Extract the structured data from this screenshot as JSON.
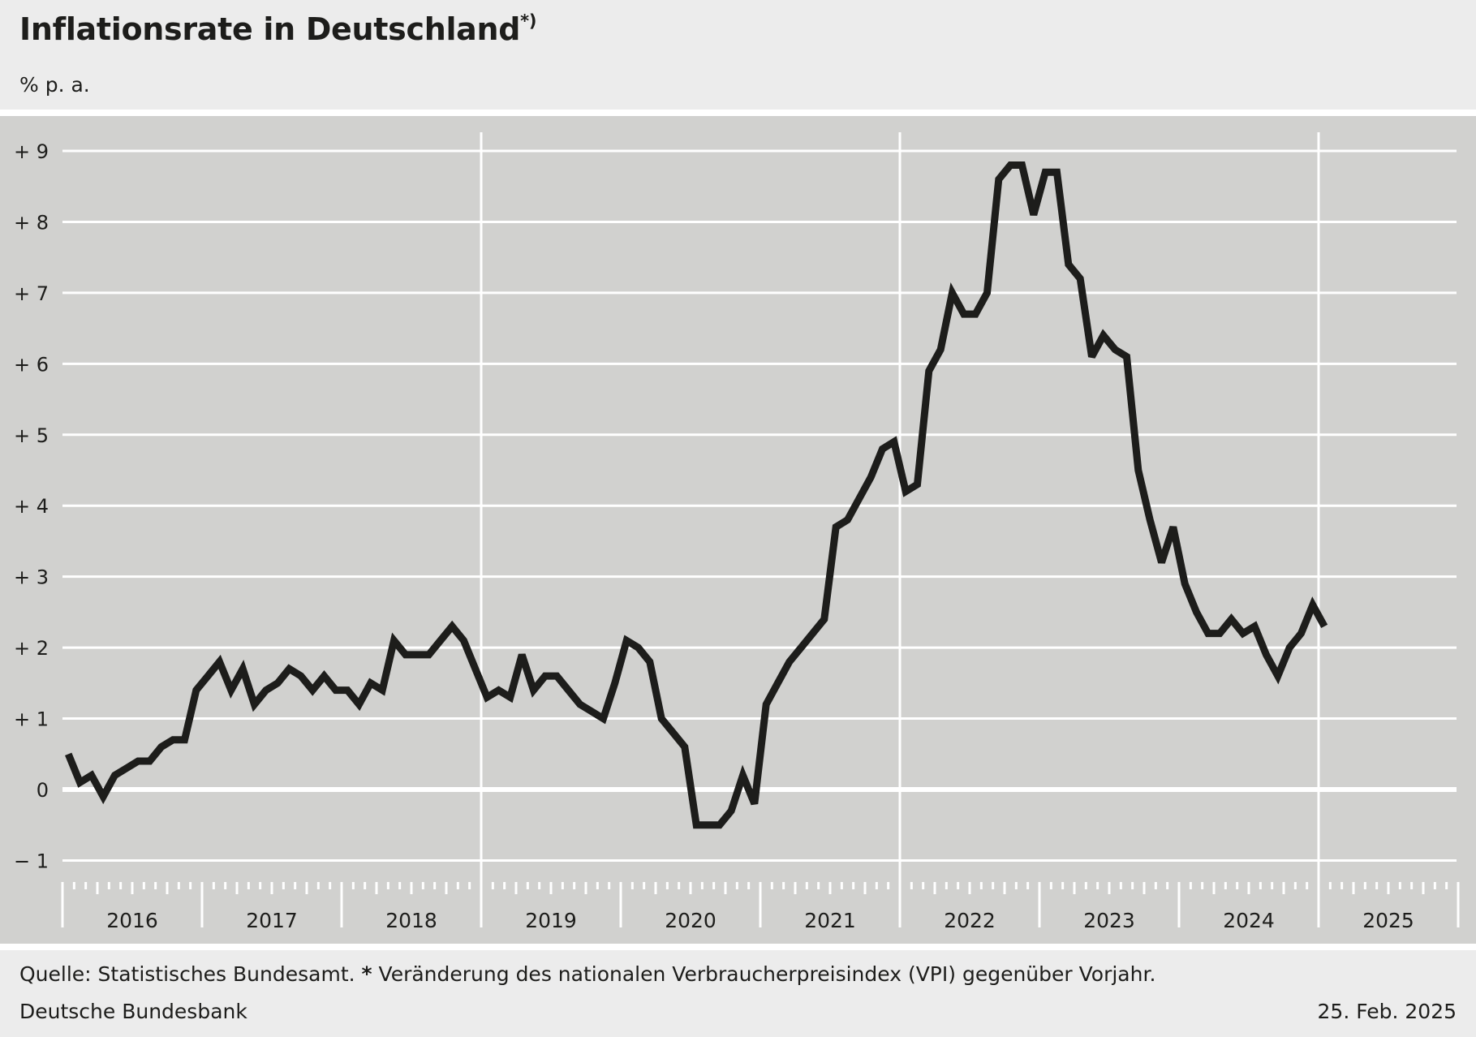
{
  "header": {
    "title": "Inflationsrate in Deutschland",
    "title_footnote_mark": "*)",
    "unit": "% p. a."
  },
  "footer": {
    "source": "Quelle: Statistisches Bundesamt.",
    "footnote_mark": "*",
    "footnote_text": "Veränderung des nationalen Verbraucherpreisindex (VPI) gegenüber Vorjahr.",
    "publisher": "Deutsche Bundesbank",
    "date": "25. Feb. 2025"
  },
  "colors": {
    "plot_background": "#d1d1cf",
    "page_background": "#ececec",
    "gridline": "#ffffff",
    "series_line": "#1d1d1b"
  },
  "chart_data": {
    "type": "line",
    "ylim": [
      -1,
      9
    ],
    "y_ticks": [
      -1,
      0,
      1,
      2,
      3,
      4,
      5,
      6,
      7,
      8,
      9
    ],
    "y_tick_labels": [
      "− 1",
      "0",
      "+ 1",
      "+ 2",
      "+ 3",
      "+ 4",
      "+ 5",
      "+ 6",
      "+ 7",
      "+ 8",
      "+ 9"
    ],
    "x_range": [
      "2016-01",
      "2025-12"
    ],
    "x_years": [
      "2016",
      "2017",
      "2018",
      "2019",
      "2020",
      "2021",
      "2022",
      "2023",
      "2024",
      "2025"
    ],
    "gridlines_horizontal": true,
    "emphasized_vertical_years": [
      "2019",
      "2022",
      "2025"
    ],
    "series": [
      {
        "start": "2016-01",
        "frequency": "monthly",
        "values": [
          0.5,
          0.1,
          0.2,
          -0.1,
          0.2,
          0.3,
          0.4,
          0.4,
          0.6,
          0.7,
          0.7,
          1.4,
          1.6,
          1.8,
          1.4,
          1.7,
          1.2,
          1.4,
          1.5,
          1.7,
          1.6,
          1.4,
          1.6,
          1.4,
          1.4,
          1.2,
          1.5,
          1.4,
          2.1,
          1.9,
          1.9,
          1.9,
          2.1,
          2.3,
          2.1,
          1.7,
          1.3,
          1.4,
          1.3,
          1.9,
          1.4,
          1.6,
          1.6,
          1.4,
          1.2,
          1.1,
          1.0,
          1.5,
          2.1,
          2.0,
          1.8,
          1.0,
          0.8,
          0.6,
          -0.5,
          -0.5,
          -0.5,
          -0.3,
          0.2,
          -0.2,
          1.2,
          1.5,
          1.8,
          2.0,
          2.2,
          2.4,
          3.7,
          3.8,
          4.1,
          4.4,
          4.8,
          4.9,
          4.2,
          4.3,
          5.9,
          6.2,
          7.0,
          6.7,
          6.7,
          7.0,
          8.6,
          8.8,
          8.8,
          8.1,
          8.7,
          8.7,
          7.4,
          7.2,
          6.1,
          6.4,
          6.2,
          6.1,
          4.5,
          3.8,
          3.2,
          3.7,
          2.9,
          2.5,
          2.2,
          2.2,
          2.4,
          2.2,
          2.3,
          1.9,
          1.6,
          2.0,
          2.2,
          2.6,
          2.3
        ]
      }
    ]
  }
}
